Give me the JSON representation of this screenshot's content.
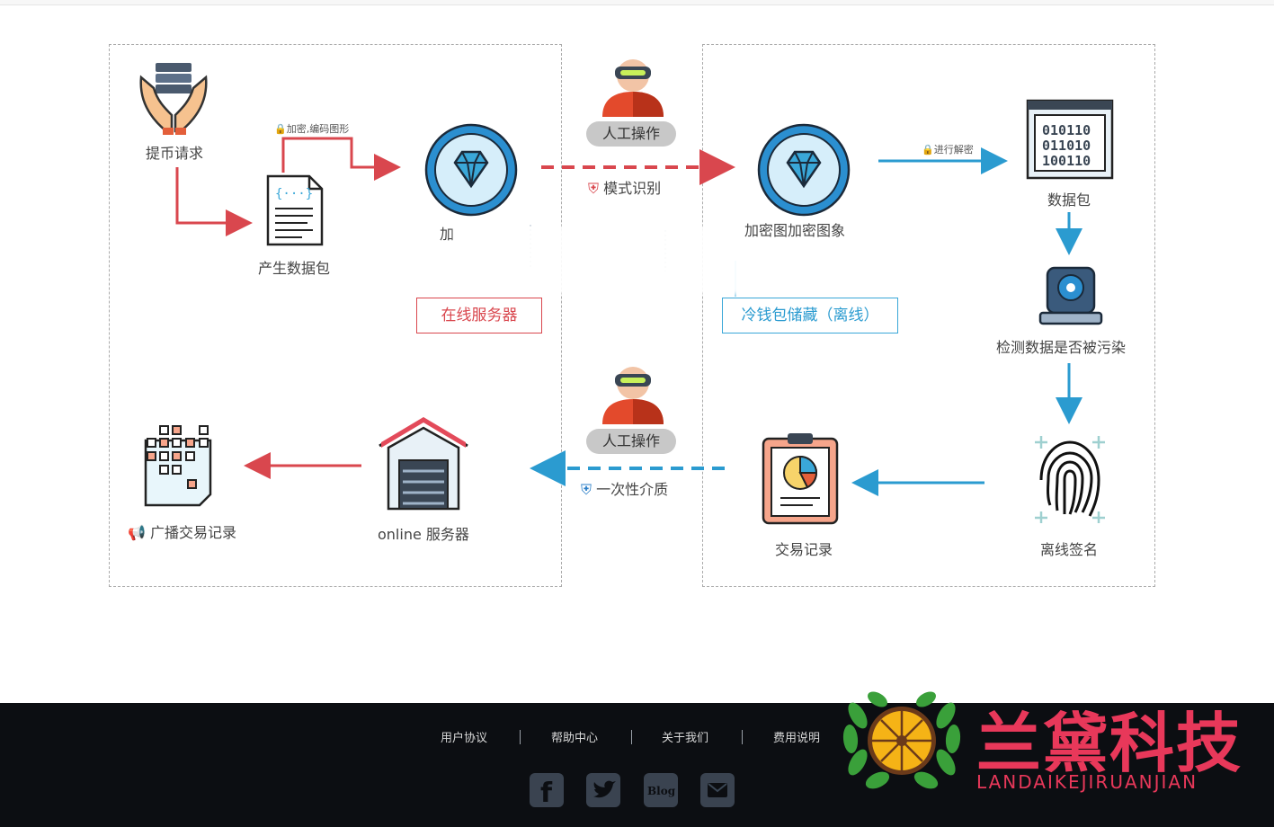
{
  "online": {
    "withdraw_request": "提币请求",
    "generate_packet": "产生数据包",
    "encrypt_note": "加密,编码图形",
    "encrypt_label": "加",
    "server_box": "在线服务器",
    "broadcast": "广播交易记录",
    "online_server": "online 服务器"
  },
  "middle": {
    "manual_top": "人工操作",
    "pattern_recognition": "模式识别",
    "manual_bottom": "人工操作",
    "one_time_media": "一次性介质"
  },
  "offline": {
    "decrypt_image": "加密图加密图象",
    "decrypt_note": "进行解密",
    "data_packet": "数据包",
    "check_pollution": "检测数据是否被污染",
    "offline_sign": "离线签名",
    "tx_record": "交易记录",
    "cold_wallet_box": "冷钱包储藏（离线）"
  },
  "footer": {
    "links": [
      "用户协议",
      "帮助中心",
      "关于我们",
      "费用说明"
    ],
    "social": [
      "facebook-icon",
      "twitter-icon",
      "blog-icon",
      "mail-icon"
    ],
    "blog_text": "Blog",
    "brand_cn": "兰黛科技",
    "brand_en": "LANDAIKEJIRUANJIAN"
  },
  "colors": {
    "red": "#d9474e",
    "blue": "#2b9bd0",
    "brand": "#e8385a"
  }
}
